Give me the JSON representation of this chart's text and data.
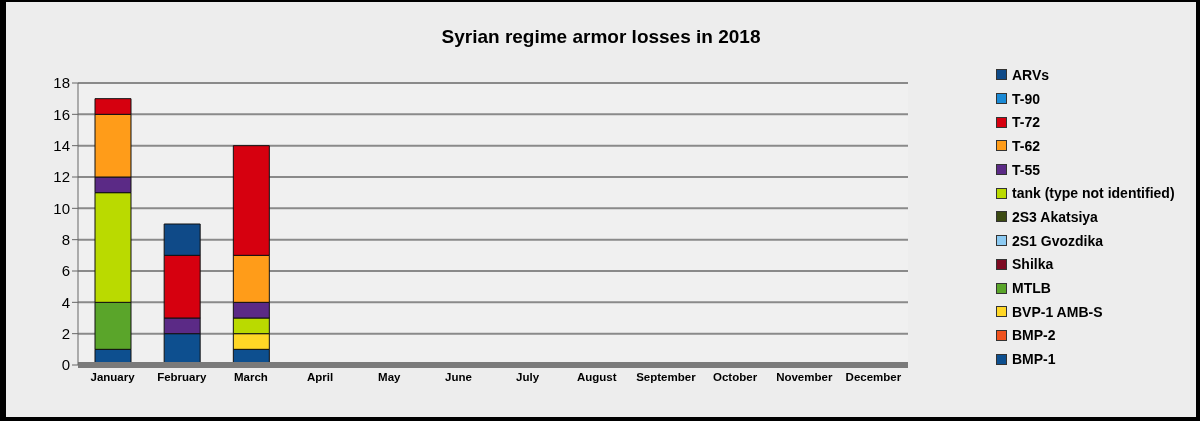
{
  "chart_data": {
    "type": "bar",
    "title": "Syrian regime armor losses in 2018",
    "categories": [
      "January",
      "February",
      "March",
      "April",
      "May",
      "June",
      "July",
      "August",
      "September",
      "October",
      "November",
      "December"
    ],
    "stacked": true,
    "ylim": [
      0,
      18
    ],
    "yticks": [
      0,
      2,
      4,
      6,
      8,
      10,
      12,
      14,
      16,
      18
    ],
    "grid": "y",
    "legend": "right",
    "series": [
      {
        "name": "BMP-1",
        "color": "#0d4f8f",
        "values": [
          1,
          2,
          1,
          null,
          null,
          null,
          null,
          null,
          null,
          null,
          null,
          null
        ]
      },
      {
        "name": "BMP-2",
        "color": "#f0521e",
        "values": [
          0,
          0,
          0,
          null,
          null,
          null,
          null,
          null,
          null,
          null,
          null,
          null
        ]
      },
      {
        "name": "BVP-1 AMB-S",
        "color": "#ffd726",
        "values": [
          0,
          0,
          1,
          null,
          null,
          null,
          null,
          null,
          null,
          null,
          null,
          null
        ]
      },
      {
        "name": "MTLB",
        "color": "#5aa52a",
        "values": [
          3,
          0,
          0,
          null,
          null,
          null,
          null,
          null,
          null,
          null,
          null,
          null
        ]
      },
      {
        "name": "Shilka",
        "color": "#7d0a22",
        "values": [
          0,
          0,
          0,
          null,
          null,
          null,
          null,
          null,
          null,
          null,
          null,
          null
        ]
      },
      {
        "name": "2S1 Gvozdika",
        "color": "#8ccaf2",
        "values": [
          0,
          0,
          0,
          null,
          null,
          null,
          null,
          null,
          null,
          null,
          null,
          null
        ]
      },
      {
        "name": "2S3 Akatsiya",
        "color": "#3b4a12",
        "values": [
          0,
          0,
          0,
          null,
          null,
          null,
          null,
          null,
          null,
          null,
          null,
          null
        ]
      },
      {
        "name": "tank (type not identified)",
        "color": "#bada00",
        "values": [
          7,
          0,
          1,
          null,
          null,
          null,
          null,
          null,
          null,
          null,
          null,
          null
        ]
      },
      {
        "name": "T-55",
        "color": "#5b2a86",
        "values": [
          1,
          1,
          1,
          null,
          null,
          null,
          null,
          null,
          null,
          null,
          null,
          null
        ]
      },
      {
        "name": "T-62",
        "color": "#ff9c19",
        "values": [
          4,
          0,
          3,
          null,
          null,
          null,
          null,
          null,
          null,
          null,
          null,
          null
        ]
      },
      {
        "name": "T-72",
        "color": "#d6000f",
        "values": [
          1,
          4,
          7,
          null,
          null,
          null,
          null,
          null,
          null,
          null,
          null,
          null
        ]
      },
      {
        "name": "T-90",
        "color": "#1a8ad6",
        "values": [
          0,
          0,
          0,
          null,
          null,
          null,
          null,
          null,
          null,
          null,
          null,
          null
        ]
      },
      {
        "name": "ARVs",
        "color": "#0f4a88",
        "values": [
          0,
          2,
          0,
          null,
          null,
          null,
          null,
          null,
          null,
          null,
          null,
          null
        ]
      }
    ]
  }
}
